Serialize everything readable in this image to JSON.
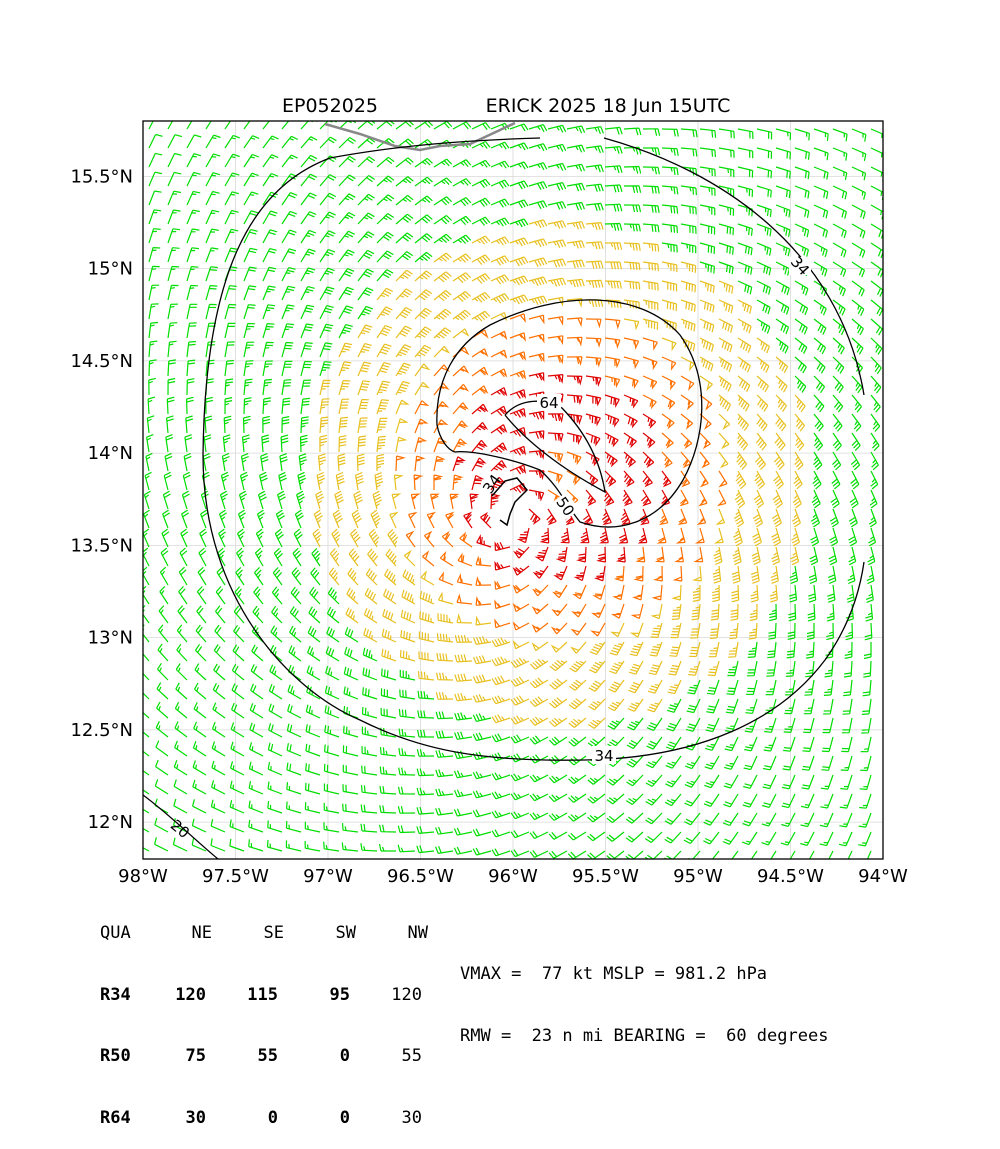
{
  "header": {
    "storm_id": "EP052025",
    "storm_title": "ERICK 2025 18 Jun 15UTC"
  },
  "map": {
    "lon_range": [
      -98.0,
      -94.0
    ],
    "lat_range": [
      11.8,
      15.8
    ],
    "center": {
      "lon": -96.0,
      "lat": 13.65
    },
    "x_tick_labels": [
      "98°W",
      "97.5°W",
      "97°W",
      "96.5°W",
      "96°W",
      "95.5°W",
      "95°W",
      "94.5°W",
      "94°W"
    ],
    "y_tick_labels": [
      "12°N",
      "12.5°N",
      "13°N",
      "13.5°N",
      "14°N",
      "14.5°N",
      "15°N",
      "15.5°N"
    ],
    "grid": true,
    "contour_labels": [
      "34",
      "34",
      "34",
      "50",
      "64",
      "20"
    ],
    "barb_colors": {
      "below_34kt": "#00dd00",
      "34_to_50kt": "#e8c020",
      "50_to_64kt": "#ff7000",
      "above_64kt": "#e00000"
    },
    "contour_color": "#000000",
    "coastline_color": "#888888"
  },
  "wind_radii": {
    "headers": [
      "QUA",
      "NE",
      "SE",
      "SW",
      "NW"
    ],
    "rows": [
      {
        "label": "R34",
        "values": [
          "120",
          "115",
          "95",
          "120"
        ]
      },
      {
        "label": "R50",
        "values": [
          "75",
          "55",
          "0",
          "55"
        ]
      },
      {
        "label": "R64",
        "values": [
          "30",
          "0",
          "0",
          "30"
        ]
      }
    ]
  },
  "metrics": {
    "line1": "VMAX =  77 kt MSLP = 981.2 hPa",
    "line2": "RMW =  23 n mi BEARING =  60 degrees"
  }
}
